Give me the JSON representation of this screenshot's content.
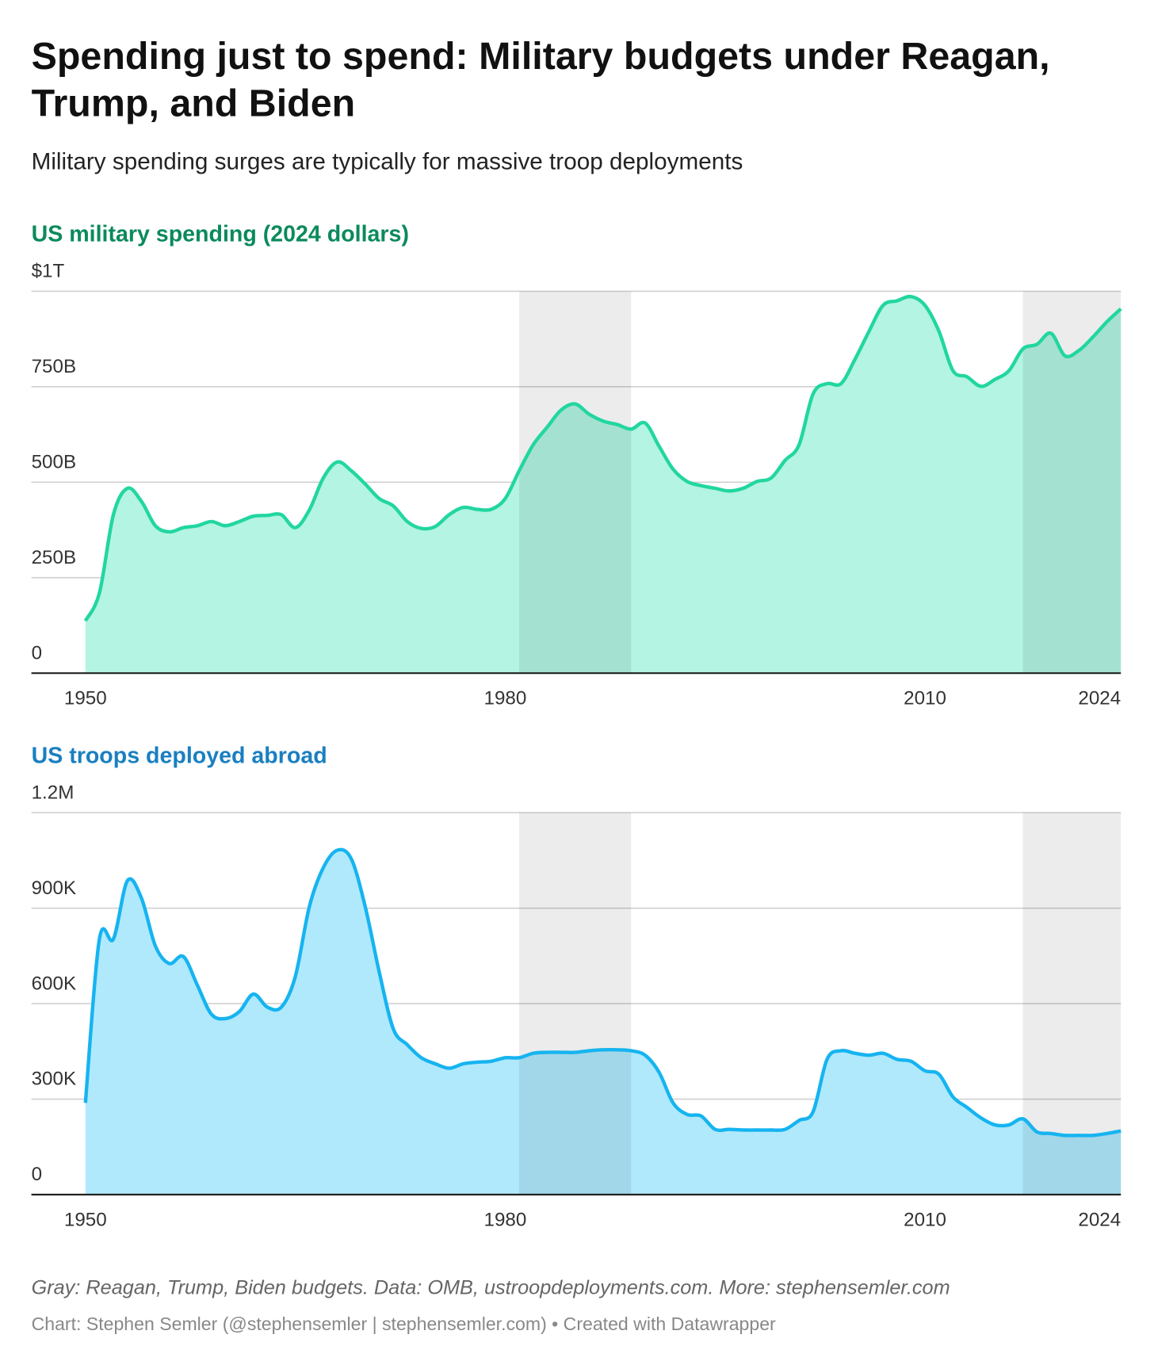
{
  "title": "Spending just to spend: Military budgets under Reagan, Trump, and Biden",
  "subtitle": "Military spending surges are typically for massive troop deployments",
  "note": "Gray: Reagan, Trump, Biden budgets. Data: OMB, ustroopdeployments.com. More: stephensemler.com",
  "credit": "Chart: Stephen Semler (@stephensemler | stephensemler.com) • Created with Datawrapper",
  "chart_data": [
    {
      "type": "area",
      "title": "US military spending (2024 dollars)",
      "title_color": "#0b8a5c",
      "color": "#22d6a0",
      "fill": "#b3f4e2",
      "x": [
        1950,
        1951,
        1952,
        1953,
        1954,
        1955,
        1956,
        1957,
        1958,
        1959,
        1960,
        1961,
        1962,
        1963,
        1964,
        1965,
        1966,
        1967,
        1968,
        1969,
        1970,
        1971,
        1972,
        1973,
        1974,
        1975,
        1976,
        1977,
        1978,
        1979,
        1980,
        1981,
        1982,
        1983,
        1984,
        1985,
        1986,
        1987,
        1988,
        1989,
        1990,
        1991,
        1992,
        1993,
        1994,
        1995,
        1996,
        1997,
        1998,
        1999,
        2000,
        2001,
        2002,
        2003,
        2004,
        2005,
        2006,
        2007,
        2008,
        2009,
        2010,
        2011,
        2012,
        2013,
        2014,
        2015,
        2016,
        2017,
        2018,
        2019,
        2020,
        2021,
        2022,
        2023,
        2024
      ],
      "values": [
        137,
        210,
        415,
        484,
        450,
        386,
        370,
        381,
        386,
        397,
        386,
        397,
        411,
        413,
        415,
        381,
        427,
        511,
        553,
        530,
        495,
        457,
        438,
        397,
        379,
        384,
        415,
        434,
        429,
        429,
        457,
        530,
        598,
        644,
        689,
        705,
        678,
        660,
        651,
        639,
        655,
        594,
        534,
        502,
        491,
        484,
        477,
        484,
        502,
        511,
        557,
        598,
        731,
        758,
        758,
        822,
        895,
        963,
        975,
        986,
        963,
        895,
        792,
        776,
        751,
        769,
        792,
        849,
        861,
        890,
        831,
        845,
        880,
        920,
        954
      ],
      "xlim": [
        1950,
        2024
      ],
      "xticks": [
        1950,
        1980,
        2010,
        2024
      ],
      "ylim": [
        0,
        1000
      ],
      "yticks": [
        0,
        {
          "value": 250,
          "label": "250B"
        },
        {
          "value": 500,
          "label": "500B"
        },
        {
          "value": 750,
          "label": "750B"
        },
        {
          "value": 1000,
          "label": "$1T"
        }
      ],
      "grid": true,
      "shaded": [
        [
          1981,
          1989
        ],
        [
          2017,
          2024
        ]
      ]
    },
    {
      "type": "area",
      "title": "US troops deployed abroad",
      "title_color": "#1a7fc1",
      "color": "#16b4f0",
      "fill": "#b0e9fc",
      "x": [
        1950,
        1951,
        1952,
        1953,
        1954,
        1955,
        1956,
        1957,
        1958,
        1959,
        1960,
        1961,
        1962,
        1963,
        1964,
        1965,
        1966,
        1967,
        1968,
        1969,
        1970,
        1971,
        1972,
        1973,
        1974,
        1975,
        1976,
        1977,
        1978,
        1979,
        1980,
        1981,
        1982,
        1983,
        1984,
        1985,
        1986,
        1987,
        1988,
        1989,
        1990,
        1991,
        1992,
        1993,
        1994,
        1995,
        1996,
        1997,
        1998,
        1999,
        2000,
        2001,
        2002,
        2003,
        2004,
        2005,
        2006,
        2007,
        2008,
        2009,
        2010,
        2011,
        2012,
        2013,
        2014,
        2015,
        2016,
        2017,
        2018,
        2019,
        2020,
        2021,
        2022,
        2023,
        2024
      ],
      "values": [
        288000,
        803000,
        803000,
        986000,
        932000,
        781000,
        726000,
        748000,
        658000,
        567000,
        553000,
        575000,
        630000,
        589000,
        589000,
        685000,
        904000,
        1027000,
        1082000,
        1055000,
        904000,
        699000,
        521000,
        471000,
        430000,
        411000,
        397000,
        411000,
        416000,
        419000,
        430000,
        430000,
        444000,
        447000,
        447000,
        447000,
        452000,
        455000,
        455000,
        452000,
        438000,
        384000,
        288000,
        252000,
        247000,
        205000,
        205000,
        203000,
        203000,
        203000,
        205000,
        233000,
        260000,
        425000,
        452000,
        444000,
        438000,
        444000,
        425000,
        419000,
        389000,
        378000,
        307000,
        274000,
        241000,
        219000,
        219000,
        238000,
        197000,
        192000,
        186000,
        186000,
        186000,
        192000,
        200000
      ],
      "xlim": [
        1950,
        2024
      ],
      "xticks": [
        1950,
        1980,
        2010,
        2024
      ],
      "ylim": [
        0,
        1200000
      ],
      "yticks": [
        0,
        {
          "value": 300000,
          "label": "300K"
        },
        {
          "value": 600000,
          "label": "600K"
        },
        {
          "value": 900000,
          "label": "900K"
        },
        {
          "value": 1200000,
          "label": "1.2M"
        }
      ],
      "grid": true,
      "shaded": [
        [
          1981,
          1989
        ],
        [
          2017,
          2024
        ]
      ]
    }
  ]
}
